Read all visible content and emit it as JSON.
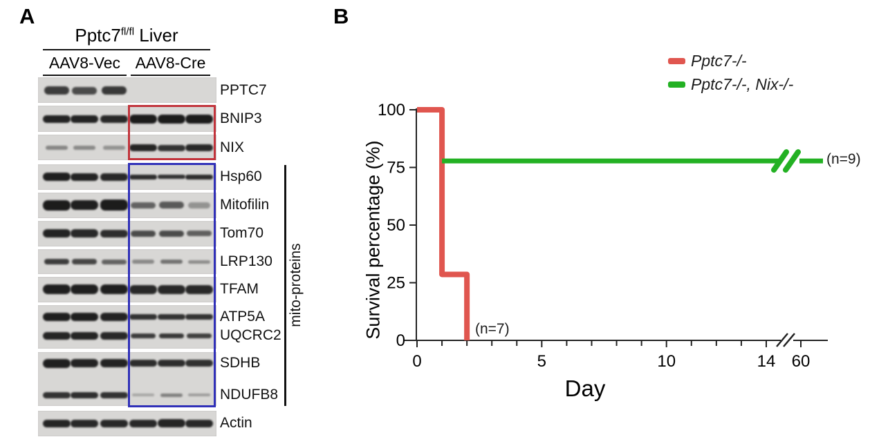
{
  "figure": {
    "panelA": {
      "label": "A",
      "title_gene": "Pptc7",
      "title_sup": "fl/fl",
      "title_suffix": " Liver",
      "col_headers": [
        "AAV8-Vec",
        "AAV8-Cre"
      ],
      "lanes_per_group": 3,
      "bracket_label": "mito-proteins",
      "highlight_box_colors": {
        "bnip3_nix_box": "#c2343c",
        "mito_protein_box": "#3030b8"
      },
      "blot_bg": "#d8d7d5",
      "band_color": "#161616",
      "blots": [
        {
          "rows": [
            {
              "label": "PPTC7",
              "bands": [
                [
                  0.8,
                  12
                ],
                [
                  0.72,
                  11
                ],
                [
                  0.82,
                  12
                ],
                [
                  0,
                  0
                ],
                [
                  0,
                  0
                ],
                [
                  0,
                  0
                ]
              ]
            }
          ]
        },
        {
          "rows": [
            {
              "label": "BNIP3",
              "bands": [
                [
                  0.93,
                  11
                ],
                [
                  0.93,
                  11
                ],
                [
                  0.9,
                  11
                ],
                [
                  0.97,
                  13
                ],
                [
                  0.97,
                  13
                ],
                [
                  0.97,
                  13
                ]
              ]
            }
          ]
        },
        {
          "rows": [
            {
              "label": "NIX",
              "bands": [
                [
                  0.42,
                  6
                ],
                [
                  0.4,
                  6
                ],
                [
                  0.35,
                  6
                ],
                [
                  0.92,
                  10
                ],
                [
                  0.85,
                  9
                ],
                [
                  0.9,
                  10
                ]
              ]
            }
          ]
        },
        {
          "rows": [
            {
              "label": "Hsp60",
              "bands": [
                [
                  0.95,
                  12
                ],
                [
                  0.93,
                  11
                ],
                [
                  0.9,
                  11
                ],
                [
                  0.88,
                  7
                ],
                [
                  0.85,
                  6
                ],
                [
                  0.88,
                  7
                ]
              ]
            }
          ]
        },
        {
          "rows": [
            {
              "label": "Mitofilin",
              "bands": [
                [
                  0.97,
                  15
                ],
                [
                  0.95,
                  14
                ],
                [
                  0.97,
                  16
                ],
                [
                  0.6,
                  9
                ],
                [
                  0.65,
                  10
                ],
                [
                  0.35,
                  9
                ]
              ]
            }
          ]
        },
        {
          "rows": [
            {
              "label": "Tom70",
              "bands": [
                [
                  0.93,
                  12
                ],
                [
                  0.9,
                  12
                ],
                [
                  0.88,
                  11
                ],
                [
                  0.72,
                  9
                ],
                [
                  0.72,
                  9
                ],
                [
                  0.62,
                  8
                ]
              ]
            }
          ]
        },
        {
          "rows": [
            {
              "label": "LRP130",
              "bands": [
                [
                  0.8,
                  8
                ],
                [
                  0.75,
                  8
                ],
                [
                  0.6,
                  7
                ],
                [
                  0.4,
                  6
                ],
                [
                  0.52,
                  6
                ],
                [
                  0.38,
                  5
                ]
              ]
            }
          ]
        },
        {
          "rows": [
            {
              "label": "TFAM",
              "bands": [
                [
                  0.95,
                  14
                ],
                [
                  0.95,
                  14
                ],
                [
                  0.95,
                  14
                ],
                [
                  0.9,
                  13
                ],
                [
                  0.9,
                  13
                ],
                [
                  0.9,
                  13
                ]
              ]
            }
          ]
        },
        {
          "rows": [
            {
              "label": "ATP5A",
              "bands": [
                [
                  0.95,
                  12
                ],
                [
                  0.95,
                  12
                ],
                [
                  0.93,
                  12
                ],
                [
                  0.85,
                  8
                ],
                [
                  0.85,
                  8
                ],
                [
                  0.85,
                  8
                ]
              ]
            },
            {
              "label": "UQCRC2",
              "bands": [
                [
                  0.92,
                  11
                ],
                [
                  0.92,
                  11
                ],
                [
                  0.9,
                  11
                ],
                [
                  0.8,
                  7
                ],
                [
                  0.82,
                  7
                ],
                [
                  0.78,
                  7
                ]
              ]
            }
          ]
        },
        {
          "rows": [
            {
              "label": "SDHB",
              "bands": [
                [
                  0.95,
                  13
                ],
                [
                  0.93,
                  12
                ],
                [
                  0.93,
                  12
                ],
                [
                  0.88,
                  10
                ],
                [
                  0.88,
                  10
                ],
                [
                  0.86,
                  10
                ]
              ]
            },
            {
              "label": "NDUFB8",
              "bands": [
                [
                  0.85,
                  9
                ],
                [
                  0.87,
                  9
                ],
                [
                  0.85,
                  9
                ],
                [
                  0.25,
                  4
                ],
                [
                  0.45,
                  5
                ],
                [
                  0.3,
                  4
                ]
              ]
            }
          ]
        },
        {
          "rows": [
            {
              "label": "Actin",
              "bands": [
                [
                  0.92,
                  11
                ],
                [
                  0.9,
                  11
                ],
                [
                  0.9,
                  11
                ],
                [
                  0.9,
                  11
                ],
                [
                  0.92,
                  12
                ],
                [
                  0.9,
                  11
                ]
              ]
            }
          ]
        }
      ]
    },
    "panelB": {
      "label": "B"
    }
  },
  "chart_data": {
    "type": "line",
    "subtype": "kaplan-meier-survival-steps",
    "title": "",
    "xlabel": "Day",
    "ylabel": "Survival percentage (%)",
    "ylim": [
      0,
      100
    ],
    "yticks": [
      0,
      25,
      50,
      75,
      100
    ],
    "xticks_major": [
      0,
      5,
      10,
      14,
      60
    ],
    "xticks_minor": [
      1,
      2,
      3,
      4,
      6,
      7,
      8,
      9,
      11,
      12,
      13
    ],
    "x_axis_break_between": [
      14,
      60
    ],
    "grid": false,
    "legend_position": "top-right",
    "axis_color": "#222222",
    "series": [
      {
        "name": "Pptc7-/-",
        "color": "#e0564f",
        "n": 7,
        "n_label": "(n=7)",
        "steps": [
          [
            0,
            100
          ],
          [
            1,
            100
          ],
          [
            1,
            28.6
          ],
          [
            2,
            28.6
          ],
          [
            2,
            0
          ]
        ]
      },
      {
        "name": "Pptc7-/-, Nix-/-",
        "color": "#23b123",
        "n": 9,
        "n_label": "(n=9)",
        "steps": [
          [
            1,
            77.8
          ],
          [
            60,
            77.8
          ]
        ],
        "crosses_axis_break": true
      }
    ]
  }
}
